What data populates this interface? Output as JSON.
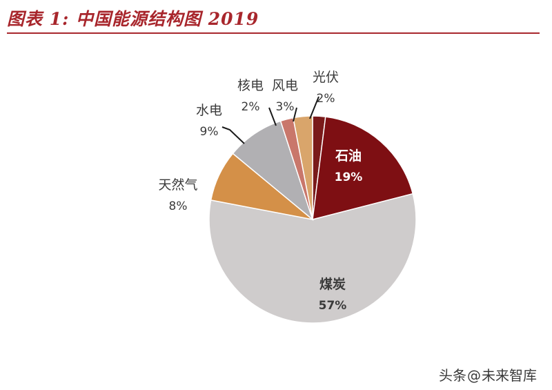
{
  "header": {
    "title": "图表 1:  中国能源结构图 2019"
  },
  "chart_data": {
    "type": "pie",
    "title": "图表 1:  中国能源结构图 2019",
    "slices": [
      {
        "label": "光伏",
        "value": 2,
        "value_label": "2%",
        "color": "#7a1a1a"
      },
      {
        "label": "石油",
        "value": 19,
        "value_label": "19%",
        "color": "#7e0f13"
      },
      {
        "label": "煤炭",
        "value": 57,
        "value_label": "57%",
        "color": "#cfcccc"
      },
      {
        "label": "天然气",
        "value": 8,
        "value_label": "8%",
        "color": "#d49048"
      },
      {
        "label": "水电",
        "value": 9,
        "value_label": "9%",
        "color": "#b1b0b3"
      },
      {
        "label": "核电",
        "value": 2,
        "value_label": "2%",
        "color": "#c9776b"
      },
      {
        "label": "风电",
        "value": 3,
        "value_label": "3%",
        "color": "#d9a56b"
      }
    ]
  },
  "watermark": {
    "prefix": "头条",
    "symbol": "@",
    "name": "未来智库"
  }
}
